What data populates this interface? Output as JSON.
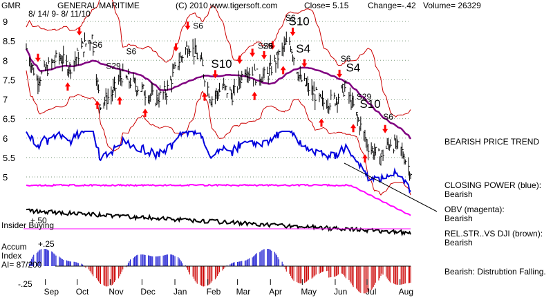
{
  "header": {
    "ticker": "GMR",
    "name": "GENERAL MARITIME",
    "date_range": "8/ 14/ 9- 8/ 11/10",
    "copyright": "(C) 2010 www.tigersoft.com",
    "close": "Close=  5.15",
    "change": "Change=-.42",
    "volume": "Volume= 26329"
  },
  "side_labels": {
    "insider_buying": "Insider Buying",
    "plus50": "+.50",
    "accum_title": "Accum",
    "accum_index": "Index",
    "ai": "AI= 87/200",
    "plus25": "+.25",
    "minus25": "-.25"
  },
  "legend": {
    "price_trend": "BEARISH PRICE TREND",
    "closing_power_title": "CLOSING POWER (blue):",
    "closing_power_value": "Bearish",
    "obv_title": "OBV (magenta):",
    "obv_value": "Bearish",
    "relstr_title": "REL.STR..VS DJI (brown):",
    "relstr_value": "Bearish",
    "accum_text": "Bearish:  Distrubtion Falling."
  },
  "colors": {
    "price_bars": "#000000",
    "bollinger_bands": "#cc0000",
    "moving_average": "#800080",
    "closing_power": "#0000dd",
    "obv": "#ff00ff",
    "rel_strength": "#000000",
    "accum_positive": "#0000cc",
    "accum_negative": "#cc0000",
    "signals": "#ff0000"
  },
  "chart_data": {
    "type": "line",
    "ylim": [
      4.5,
      9.1
    ],
    "y_ticks": [
      "9",
      "8.5",
      "8",
      "7.5",
      "7",
      "6.5",
      "6",
      "5.5",
      "5"
    ],
    "x_ticks": [
      "Sep",
      "Oct",
      "Nov",
      "Dec",
      "Jan",
      "Feb",
      "Mar",
      "Apr",
      "May",
      "Jun",
      "Jul",
      "Aug"
    ],
    "price_series": {
      "name": "GENERAL MARITIME",
      "close_points": [
        [
          "8/14/09",
          8.3
        ],
        [
          "8/24/09",
          7.5
        ],
        [
          "9/3/09",
          7.8
        ],
        [
          "9/14/09",
          8.1
        ],
        [
          "9/24/09",
          7.8
        ],
        [
          "10/5/09",
          8.3
        ],
        [
          "10/15/09",
          8.6
        ],
        [
          "10/22/09",
          6.9
        ],
        [
          "11/2/09",
          7.1
        ],
        [
          "11/12/09",
          7.6
        ],
        [
          "11/23/09",
          7.4
        ],
        [
          "12/3/09",
          7.2
        ],
        [
          "12/14/09",
          7.0
        ],
        [
          "12/24/09",
          7.2
        ],
        [
          "1/5/10",
          8.0
        ],
        [
          "1/14/10",
          8.4
        ],
        [
          "1/25/10",
          8.0
        ],
        [
          "2/4/10",
          7.0
        ],
        [
          "2/15/10",
          7.3
        ],
        [
          "2/25/10",
          7.1
        ],
        [
          "3/8/10",
          7.8
        ],
        [
          "3/18/10",
          7.6
        ],
        [
          "3/29/10",
          7.6
        ],
        [
          "4/8/10",
          8.1
        ],
        [
          "4/19/10",
          8.5
        ],
        [
          "4/29/10",
          7.5
        ],
        [
          "5/10/10",
          7.2
        ],
        [
          "5/20/10",
          6.9
        ],
        [
          "6/1/10",
          7.0
        ],
        [
          "6/11/10",
          7.3
        ],
        [
          "6/22/10",
          6.5
        ],
        [
          "7/2/10",
          5.8
        ],
        [
          "7/13/10",
          5.5
        ],
        [
          "7/23/10",
          5.9
        ],
        [
          "8/2/10",
          5.7
        ],
        [
          "8/11/10",
          5.15
        ]
      ]
    },
    "signals": [
      {
        "label": "S6",
        "near": "10/19/09"
      },
      {
        "label": "S29",
        "near": "11/1/09"
      },
      {
        "label": "S6",
        "near": "11/20/09"
      },
      {
        "label": "S6",
        "near": "1/22/10"
      },
      {
        "label": "S10",
        "near": "2/8/10"
      },
      {
        "label": "S29",
        "near": "3/24/10"
      },
      {
        "label": "S6",
        "near": "3/29/10"
      },
      {
        "label": "S6",
        "near": "4/19/10"
      },
      {
        "label": "S10",
        "near": "4/22/10"
      },
      {
        "label": "S4",
        "near": "4/29/10"
      },
      {
        "label": "S4",
        "near": "6/15/10"
      },
      {
        "label": "S6",
        "near": "6/10/10"
      },
      {
        "label": "S29",
        "near": "6/25/10"
      },
      {
        "label": "S10",
        "near": "6/28/10"
      },
      {
        "label": "S6",
        "near": "7/20/10"
      }
    ],
    "buy_arrows": [
      "9/22/09",
      "10/20/09",
      "11/10/09",
      "12/4/09",
      "1/29/10",
      "3/17/10",
      "4/13/10",
      "5/19/10",
      "6/18/10",
      "6/29/10"
    ],
    "sell_arrows": [
      "8/25/09",
      "10/3/09",
      "1/2/10",
      "1/13/10",
      "2/8/10",
      "3/3/10",
      "3/15/10",
      "3/26/10",
      "4/3/10",
      "4/22/10",
      "5/3/10",
      "6/5/10",
      "7/18/10"
    ]
  }
}
